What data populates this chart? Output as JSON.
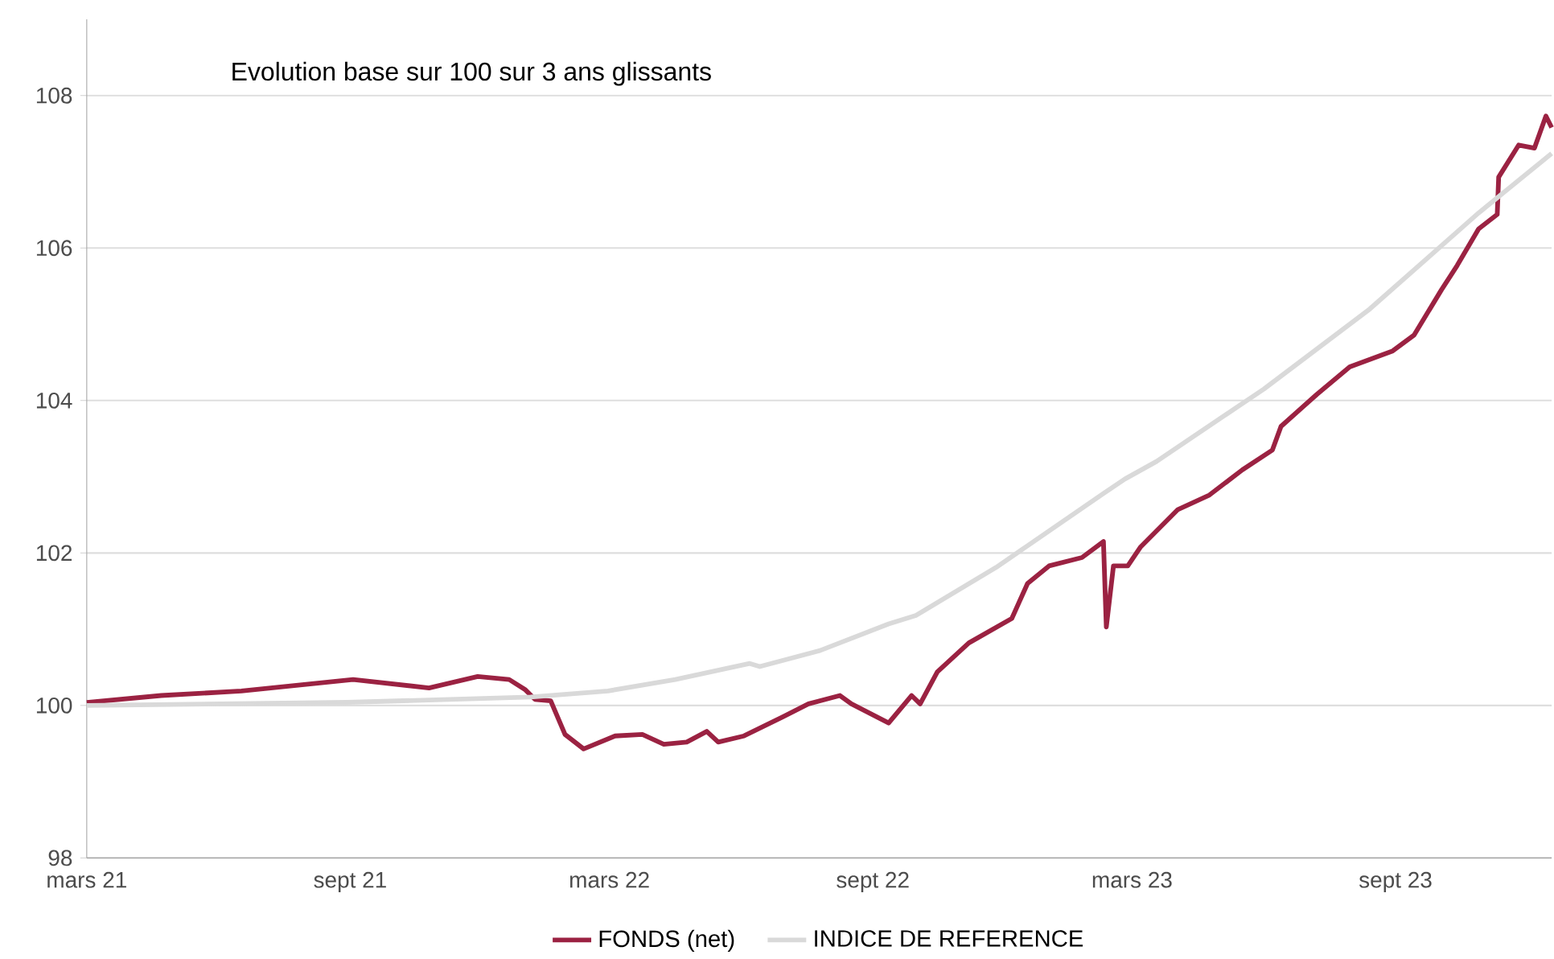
{
  "chart_data": {
    "type": "line",
    "title": "Evolution base sur 100 sur 3 ans glissants",
    "xlim": [
      "2021-03-01",
      "2023-12-19"
    ],
    "ylim": [
      98,
      109
    ],
    "xticks": [
      {
        "value": "2021-03-01",
        "label": "mars 21"
      },
      {
        "value": "2021-09-01",
        "label": "sept 21"
      },
      {
        "value": "2022-03-01",
        "label": "mars 22"
      },
      {
        "value": "2022-09-01",
        "label": "sept 22"
      },
      {
        "value": "2023-03-01",
        "label": "mars 23"
      },
      {
        "value": "2023-09-01",
        "label": "sept 23"
      }
    ],
    "yticks": [
      98,
      100,
      102,
      104,
      106,
      108
    ],
    "grid": "y",
    "legend": "bottom",
    "line_style": "solid",
    "series": [
      {
        "name": "FONDS (net)",
        "color": "#9b2242",
        "x": [
          "2021-03-01",
          "2021-04-22",
          "2021-06-17",
          "2021-09-03",
          "2021-10-26",
          "2021-11-29",
          "2021-12-21",
          "2022-01-01",
          "2022-01-08",
          "2022-01-19",
          "2022-01-29",
          "2022-02-11",
          "2022-03-05",
          "2022-03-24",
          "2022-04-08",
          "2022-04-24",
          "2022-05-08",
          "2022-05-16",
          "2022-06-03",
          "2022-06-30",
          "2022-07-18",
          "2022-08-09",
          "2022-08-17",
          "2022-09-12",
          "2022-09-28",
          "2022-10-04",
          "2022-10-16",
          "2022-11-07",
          "2022-12-07",
          "2022-12-18",
          "2023-01-02",
          "2023-01-25",
          "2023-02-09",
          "2023-02-11",
          "2023-02-16",
          "2023-02-26",
          "2023-03-07",
          "2023-04-02",
          "2023-04-24",
          "2023-05-17",
          "2023-06-07",
          "2023-06-13",
          "2023-07-08",
          "2023-07-31",
          "2023-08-30",
          "2023-09-14",
          "2023-10-03",
          "2023-10-14",
          "2023-10-29",
          "2023-11-11",
          "2023-11-12",
          "2023-11-26",
          "2023-12-07",
          "2023-12-15",
          "2023-12-19"
        ],
        "values": [
          100.04,
          100.13,
          100.19,
          100.34,
          100.23,
          100.38,
          100.34,
          100.21,
          100.08,
          100.06,
          99.62,
          99.43,
          99.6,
          99.62,
          99.49,
          99.52,
          99.66,
          99.52,
          99.6,
          99.85,
          100.02,
          100.13,
          100.02,
          99.77,
          100.13,
          100.02,
          100.44,
          100.82,
          101.14,
          101.6,
          101.83,
          101.94,
          102.15,
          101.03,
          101.83,
          101.83,
          102.08,
          102.57,
          102.76,
          103.09,
          103.35,
          103.66,
          104.08,
          104.44,
          104.65,
          104.86,
          105.45,
          105.77,
          106.25,
          106.44,
          106.93,
          107.35,
          107.31,
          107.73,
          107.58
        ]
      },
      {
        "name": "INDICE DE REFERENCE",
        "color": "#d9d9d9",
        "x": [
          "2021-03-01",
          "2021-08-30",
          "2022-01-05",
          "2022-02-28",
          "2022-04-16",
          "2022-06-07",
          "2022-06-14",
          "2022-07-26",
          "2022-09-12",
          "2022-10-01",
          "2022-11-26",
          "2023-02-09",
          "2023-02-24",
          "2023-03-18",
          "2023-06-01",
          "2023-08-14",
          "2023-10-29",
          "2023-12-19"
        ],
        "values": [
          100.0,
          100.04,
          100.11,
          100.19,
          100.34,
          100.55,
          100.51,
          100.72,
          101.07,
          101.18,
          101.81,
          102.78,
          102.97,
          103.2,
          104.15,
          105.2,
          106.46,
          107.24
        ]
      }
    ]
  }
}
